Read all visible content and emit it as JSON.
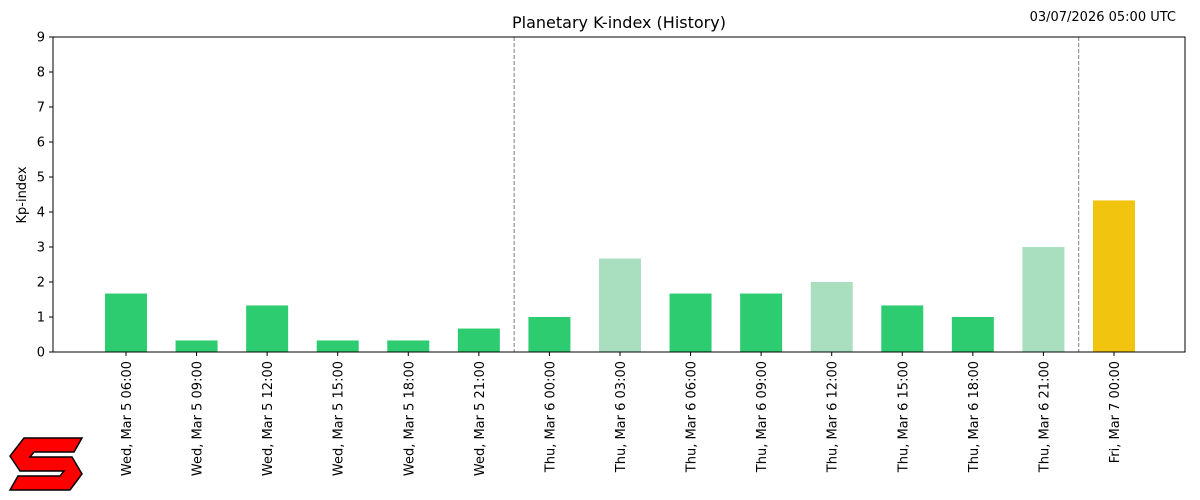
{
  "chart_data": {
    "type": "bar",
    "title": "Planetary K-index (History)",
    "timestamp": "03/07/2026 05:00 UTC",
    "ylabel": "Kp-index",
    "xlabel": "",
    "ylim": [
      0,
      9
    ],
    "yticks": [
      0,
      1,
      2,
      3,
      4,
      5,
      6,
      7,
      8,
      9
    ],
    "categories": [
      "Wed, Mar 5 06:00",
      "Wed, Mar 5 09:00",
      "Wed, Mar 5 12:00",
      "Wed, Mar 5 15:00",
      "Wed, Mar 5 18:00",
      "Wed, Mar 5 21:00",
      "Thu, Mar 6 00:00",
      "Thu, Mar 6 03:00",
      "Thu, Mar 6 06:00",
      "Thu, Mar 6 09:00",
      "Thu, Mar 6 12:00",
      "Thu, Mar 6 15:00",
      "Thu, Mar 6 18:00",
      "Thu, Mar 6 21:00",
      "Fri, Mar 7 00:00"
    ],
    "values": [
      1.67,
      0.33,
      1.33,
      0.33,
      0.33,
      0.67,
      1.0,
      2.67,
      1.67,
      1.67,
      2.0,
      1.33,
      1.0,
      3.0,
      4.33
    ],
    "bar_colors": [
      "#2ecc71",
      "#2ecc71",
      "#2ecc71",
      "#2ecc71",
      "#2ecc71",
      "#2ecc71",
      "#2ecc71",
      "#a9dfbf",
      "#2ecc71",
      "#2ecc71",
      "#a9dfbf",
      "#2ecc71",
      "#2ecc71",
      "#a9dfbf",
      "#f1c40f"
    ],
    "day_dividers_before": [
      "Thu, Mar 6 00:00",
      "Fri, Mar 7 00:00"
    ],
    "grid": false,
    "legend": "none"
  },
  "logo": {
    "icon": "s-logo-icon",
    "fill": "#ff0000",
    "stroke": "#000000"
  }
}
